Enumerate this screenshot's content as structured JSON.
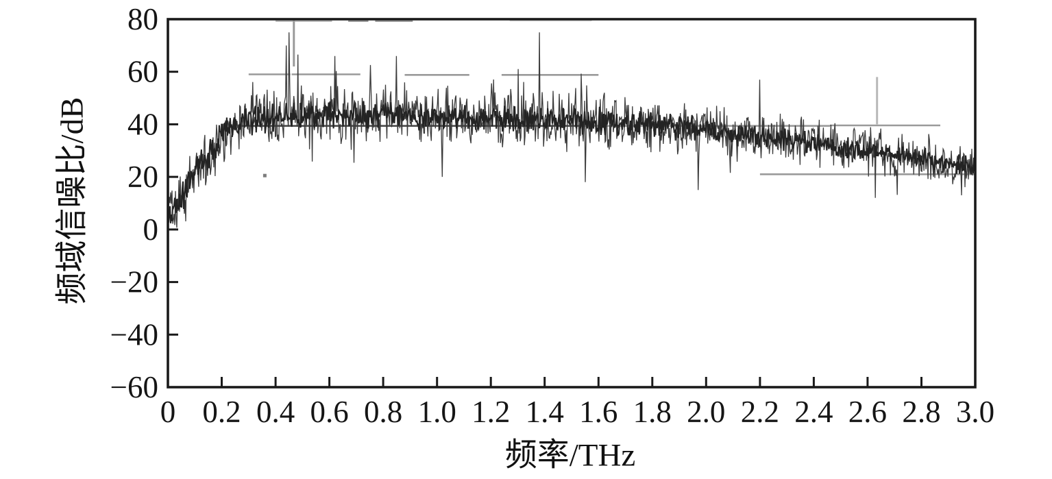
{
  "figure": {
    "background": "#ffffff",
    "frame_color": "#1a1a1a",
    "trace_color": "#3b3b3b",
    "trace_core_color": "#232323",
    "reference_gray": "#9a9a9a"
  },
  "chart_data": {
    "type": "line",
    "title": "",
    "xlabel": "频率/THz",
    "ylabel": "频域信噪比/dB",
    "xlim": [
      0,
      3.0
    ],
    "ylim": [
      -60,
      80
    ],
    "grid": false,
    "legend": "none",
    "x_ticks": {
      "values": [
        0,
        0.2,
        0.4,
        0.6,
        0.8,
        1.0,
        1.2,
        1.4,
        1.6,
        1.8,
        2.0,
        2.2,
        2.4,
        2.6,
        2.8,
        3.0
      ],
      "labels": [
        "0",
        "0.2",
        "0.4",
        "0.6",
        "0.8",
        "1.0",
        "1.2",
        "1.4",
        "1.6",
        "1.8",
        "2.0",
        "2.2",
        "2.4",
        "2.6",
        "2.8",
        "3.0"
      ]
    },
    "y_ticks": {
      "values": [
        80,
        60,
        40,
        20,
        0,
        -20,
        -40,
        -60
      ],
      "labels": [
        "80",
        "60",
        "40",
        "20",
        "0",
        "−20",
        "−40",
        "−60"
      ]
    },
    "series": [
      {
        "name": "noisy-snr-trace",
        "style": "noisy-line",
        "trend_x_mean_spread": [
          [
            0.0,
            5,
            10
          ],
          [
            0.05,
            12,
            13
          ],
          [
            0.1,
            22,
            12
          ],
          [
            0.15,
            28,
            13
          ],
          [
            0.2,
            36,
            11
          ],
          [
            0.25,
            39,
            11
          ],
          [
            0.3,
            41,
            11
          ],
          [
            0.4,
            43,
            12
          ],
          [
            0.5,
            43,
            12
          ],
          [
            0.6,
            44,
            12
          ],
          [
            0.7,
            43,
            12
          ],
          [
            0.8,
            44,
            11
          ],
          [
            0.9,
            43,
            11
          ],
          [
            1.0,
            43,
            11
          ],
          [
            1.1,
            43,
            11
          ],
          [
            1.2,
            42,
            10
          ],
          [
            1.3,
            42,
            11
          ],
          [
            1.4,
            42,
            11
          ],
          [
            1.5,
            42,
            11
          ],
          [
            1.6,
            41,
            11
          ],
          [
            1.7,
            40,
            10
          ],
          [
            1.8,
            40,
            10
          ],
          [
            1.9,
            39,
            10
          ],
          [
            2.0,
            38,
            10
          ],
          [
            2.1,
            36,
            9
          ],
          [
            2.2,
            35,
            9
          ],
          [
            2.3,
            34,
            9
          ],
          [
            2.4,
            33,
            9
          ],
          [
            2.5,
            31,
            9
          ],
          [
            2.6,
            30,
            9
          ],
          [
            2.7,
            28,
            8
          ],
          [
            2.8,
            27,
            8
          ],
          [
            2.9,
            25,
            8
          ],
          [
            3.0,
            24,
            8
          ]
        ],
        "spikes_up": [
          [
            0.44,
            70
          ],
          [
            0.45,
            75
          ],
          [
            0.62,
            66
          ],
          [
            0.85,
            66
          ],
          [
            1.38,
            75
          ],
          [
            2.2,
            57
          ]
        ],
        "spikes_down": [
          [
            1.02,
            20
          ],
          [
            1.55,
            18
          ],
          [
            1.97,
            15
          ],
          [
            2.63,
            12
          ],
          [
            2.95,
            13
          ]
        ]
      },
      {
        "name": "reference-step-trace",
        "style": "step-segments",
        "segments": [
          {
            "x1": 0.4,
            "x2": 0.61,
            "db": 79.3,
            "shade": "light"
          },
          {
            "x1": 0.67,
            "x2": 0.745,
            "db": 79.3,
            "shade": "gray"
          },
          {
            "x1": 0.77,
            "x2": 0.91,
            "db": 79.3,
            "shade": "gray"
          },
          {
            "x1": 1.27,
            "x2": 1.575,
            "db": 79.5,
            "shade": "xlight"
          },
          {
            "x1": 0.3,
            "x2": 0.455,
            "db": 59.0,
            "shade": "gray"
          },
          {
            "x1": 0.46,
            "x2": 0.715,
            "db": 59.0,
            "shade": "gray"
          },
          {
            "x1": 0.88,
            "x2": 1.12,
            "db": 58.8,
            "shade": "gray"
          },
          {
            "x1": 1.24,
            "x2": 1.6,
            "db": 58.8,
            "shade": "gray"
          },
          {
            "x1": 0.26,
            "x2": 1.55,
            "db": 39.4,
            "shade": "dark"
          },
          {
            "x1": 1.55,
            "x2": 2.46,
            "db": 39.4,
            "shade": "gray"
          },
          {
            "x1": 2.46,
            "x2": 2.87,
            "db": 39.6,
            "shade": "gray"
          },
          {
            "x1": 2.2,
            "x2": 3.0,
            "db": 21.0,
            "shade": "gray"
          }
        ],
        "vertical_spikes": [
          {
            "x": 0.468,
            "db_top": 80,
            "db_bottom": 62,
            "shade": "gray"
          },
          {
            "x": 2.635,
            "db_top": 58,
            "db_bottom": 40,
            "shade": "light"
          }
        ],
        "stray_dot": {
          "x": 0.36,
          "db": 20.5
        }
      }
    ]
  }
}
